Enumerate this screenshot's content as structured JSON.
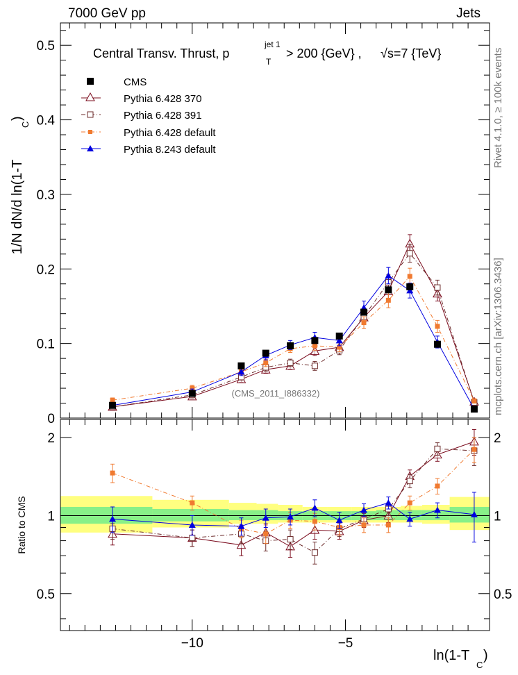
{
  "header": {
    "left": "7000 GeV pp",
    "right": "Jets"
  },
  "side": {
    "rivet": "Rivet 4.1.0, ≥ 100k events",
    "mcplots": "mcplots.cern.ch [arXiv:1306.3436]"
  },
  "chart_data": [
    {
      "type": "line",
      "panel": "main",
      "title_parts": {
        "prefix": "Central Transv. Thrust, p",
        "sub": "T",
        "sup": "jet 1",
        "suffix": "> 200 {GeV} ,",
        "sqrt_s": "√s=7 {TeV}"
      },
      "ylabel": {
        "main": "1/N   dN/d ln(1-T",
        "sub": "C",
        "close": ")"
      },
      "ylim": [
        0,
        0.53
      ],
      "xlim": [
        -14.3,
        -0.3
      ],
      "yticks": [
        "0",
        "0.1",
        "0.2",
        "0.3",
        "0.4",
        "0.5"
      ],
      "ytick_values": [
        0,
        0.1,
        0.2,
        0.3,
        0.4,
        0.5
      ],
      "watermark": "(CMS_2011_I886332)",
      "x": [
        -12.6,
        -10.0,
        -8.4,
        -7.6,
        -6.8,
        -6.0,
        -5.2,
        -4.4,
        -3.6,
        -2.9,
        -2.0,
        -0.8
      ],
      "series": [
        {
          "name": "CMS",
          "color": "#000000",
          "marker": "square-filled",
          "values": [
            0.017,
            0.033,
            0.07,
            0.087,
            0.097,
            0.104,
            0.11,
            0.142,
            0.172,
            0.176,
            0.099,
            0.012
          ]
        },
        {
          "name": "Pythia 6.428 370",
          "color": "#7b0c1e",
          "marker": "triangle-open",
          "line": "solid",
          "values": [
            0.015,
            0.029,
            0.052,
            0.065,
            0.07,
            0.09,
            0.095,
            0.135,
            0.17,
            0.234,
            0.167,
            0.022
          ],
          "errors": [
            0.003,
            0.003,
            0.004,
            0.005,
            0.005,
            0.006,
            0.006,
            0.008,
            0.01,
            0.012,
            0.01,
            0.003
          ]
        },
        {
          "name": "Pythia 6.428 391",
          "color": "#6b2a2a",
          "marker": "square-open",
          "line": "dashdot",
          "values": [
            0.015,
            0.031,
            0.055,
            0.068,
            0.074,
            0.07,
            0.091,
            0.136,
            0.182,
            0.221,
            0.175,
            0.021
          ],
          "errors": [
            0.003,
            0.003,
            0.004,
            0.005,
            0.005,
            0.006,
            0.006,
            0.008,
            0.01,
            0.012,
            0.01,
            0.003
          ]
        },
        {
          "name": "Pythia 6.428 default",
          "color": "#f07a30",
          "marker": "square-filled-small",
          "line": "dashdot",
          "values": [
            0.024,
            0.04,
            0.062,
            0.074,
            0.093,
            0.097,
            0.095,
            0.128,
            0.158,
            0.19,
            0.123,
            0.023
          ],
          "errors": [
            0.003,
            0.004,
            0.004,
            0.005,
            0.005,
            0.006,
            0.006,
            0.008,
            0.01,
            0.011,
            0.008,
            0.003
          ]
        },
        {
          "name": "Pythia 8.243 default",
          "color": "#0000e0",
          "marker": "triangle-filled",
          "line": "solid",
          "values": [
            0.017,
            0.035,
            0.062,
            0.084,
            0.098,
            0.108,
            0.104,
            0.148,
            0.191,
            0.171,
            0.102,
            0.012
          ],
          "errors": [
            0.003,
            0.004,
            0.005,
            0.006,
            0.006,
            0.007,
            0.007,
            0.009,
            0.011,
            0.01,
            0.008,
            0.003
          ]
        }
      ]
    },
    {
      "type": "line",
      "panel": "ratio",
      "ylabel": "Ratio to CMS",
      "xlabel_parts": {
        "main": "ln(1-T",
        "sub": "C",
        "close": ")"
      },
      "yscale": "log",
      "ylim": [
        0.36,
        2.35
      ],
      "xticks": [
        "−10",
        "−5"
      ],
      "xtick_values": [
        -10,
        -5
      ],
      "yticks": [
        "0.5",
        "1",
        "2"
      ],
      "ytick_values": [
        0.5,
        1,
        2
      ],
      "band_edges": [
        -14.3,
        -11.3,
        -8.8,
        -7.9,
        -7.2,
        -6.4,
        -5.6,
        -4.8,
        -4.0,
        -3.2,
        -2.5,
        -1.6,
        -0.3
      ],
      "band_inner": [
        [
          0.93,
          1.08
        ],
        [
          0.95,
          1.06
        ],
        [
          0.96,
          1.05
        ],
        [
          0.96,
          1.05
        ],
        [
          0.96,
          1.04
        ],
        [
          0.96,
          1.04
        ],
        [
          0.96,
          1.04
        ],
        [
          0.96,
          1.04
        ],
        [
          0.96,
          1.05
        ],
        [
          0.96,
          1.05
        ],
        [
          0.96,
          1.05
        ],
        [
          0.94,
          1.08
        ]
      ],
      "band_outer": [
        [
          0.86,
          1.19
        ],
        [
          0.9,
          1.15
        ],
        [
          0.93,
          1.12
        ],
        [
          0.93,
          1.11
        ],
        [
          0.94,
          1.1
        ],
        [
          0.94,
          1.08
        ],
        [
          0.94,
          1.08
        ],
        [
          0.94,
          1.08
        ],
        [
          0.94,
          1.08
        ],
        [
          0.94,
          1.09
        ],
        [
          0.93,
          1.1
        ],
        [
          0.88,
          1.18
        ]
      ],
      "x": [
        -12.6,
        -10.0,
        -8.4,
        -7.6,
        -6.8,
        -6.0,
        -5.2,
        -4.4,
        -3.6,
        -2.9,
        -2.0,
        -0.8
      ],
      "series": [
        {
          "name": "Pythia 6.428 370",
          "color": "#7b0c1e",
          "marker": "triangle-open",
          "line": "solid",
          "values": [
            0.85,
            0.82,
            0.77,
            0.86,
            0.76,
            0.88,
            0.87,
            0.96,
            1.0,
            1.42,
            1.72,
            1.93
          ],
          "errors": [
            0.08,
            0.06,
            0.07,
            0.07,
            0.07,
            0.07,
            0.06,
            0.06,
            0.06,
            0.08,
            0.1,
            0.22
          ]
        },
        {
          "name": "Pythia 6.428 391",
          "color": "#6b2a2a",
          "marker": "square-open",
          "line": "dashdot",
          "values": [
            0.89,
            0.82,
            0.85,
            0.8,
            0.81,
            0.72,
            0.89,
            0.97,
            1.06,
            1.36,
            1.81,
            1.78
          ],
          "errors": [
            0.08,
            0.06,
            0.07,
            0.07,
            0.07,
            0.07,
            0.06,
            0.06,
            0.06,
            0.08,
            0.1,
            0.22
          ]
        },
        {
          "name": "Pythia 6.428 default",
          "color": "#f07a30",
          "marker": "square-filled-small",
          "line": "dashdot",
          "values": [
            1.46,
            1.12,
            0.89,
            0.85,
            0.96,
            0.95,
            0.9,
            0.92,
            0.92,
            1.12,
            1.3,
            1.8
          ],
          "errors": [
            0.12,
            0.07,
            0.07,
            0.07,
            0.07,
            0.07,
            0.06,
            0.06,
            0.06,
            0.07,
            0.09,
            0.2
          ]
        },
        {
          "name": "Pythia 8.243 default",
          "color": "#0000e0",
          "marker": "triangle-filled",
          "line": "solid",
          "values": [
            0.97,
            0.92,
            0.91,
            0.98,
            0.99,
            1.07,
            0.96,
            1.05,
            1.12,
            0.97,
            1.05,
            1.01
          ],
          "errors": [
            0.11,
            0.08,
            0.07,
            0.08,
            0.07,
            0.08,
            0.07,
            0.06,
            0.06,
            0.06,
            0.07,
            0.22
          ]
        }
      ]
    }
  ]
}
